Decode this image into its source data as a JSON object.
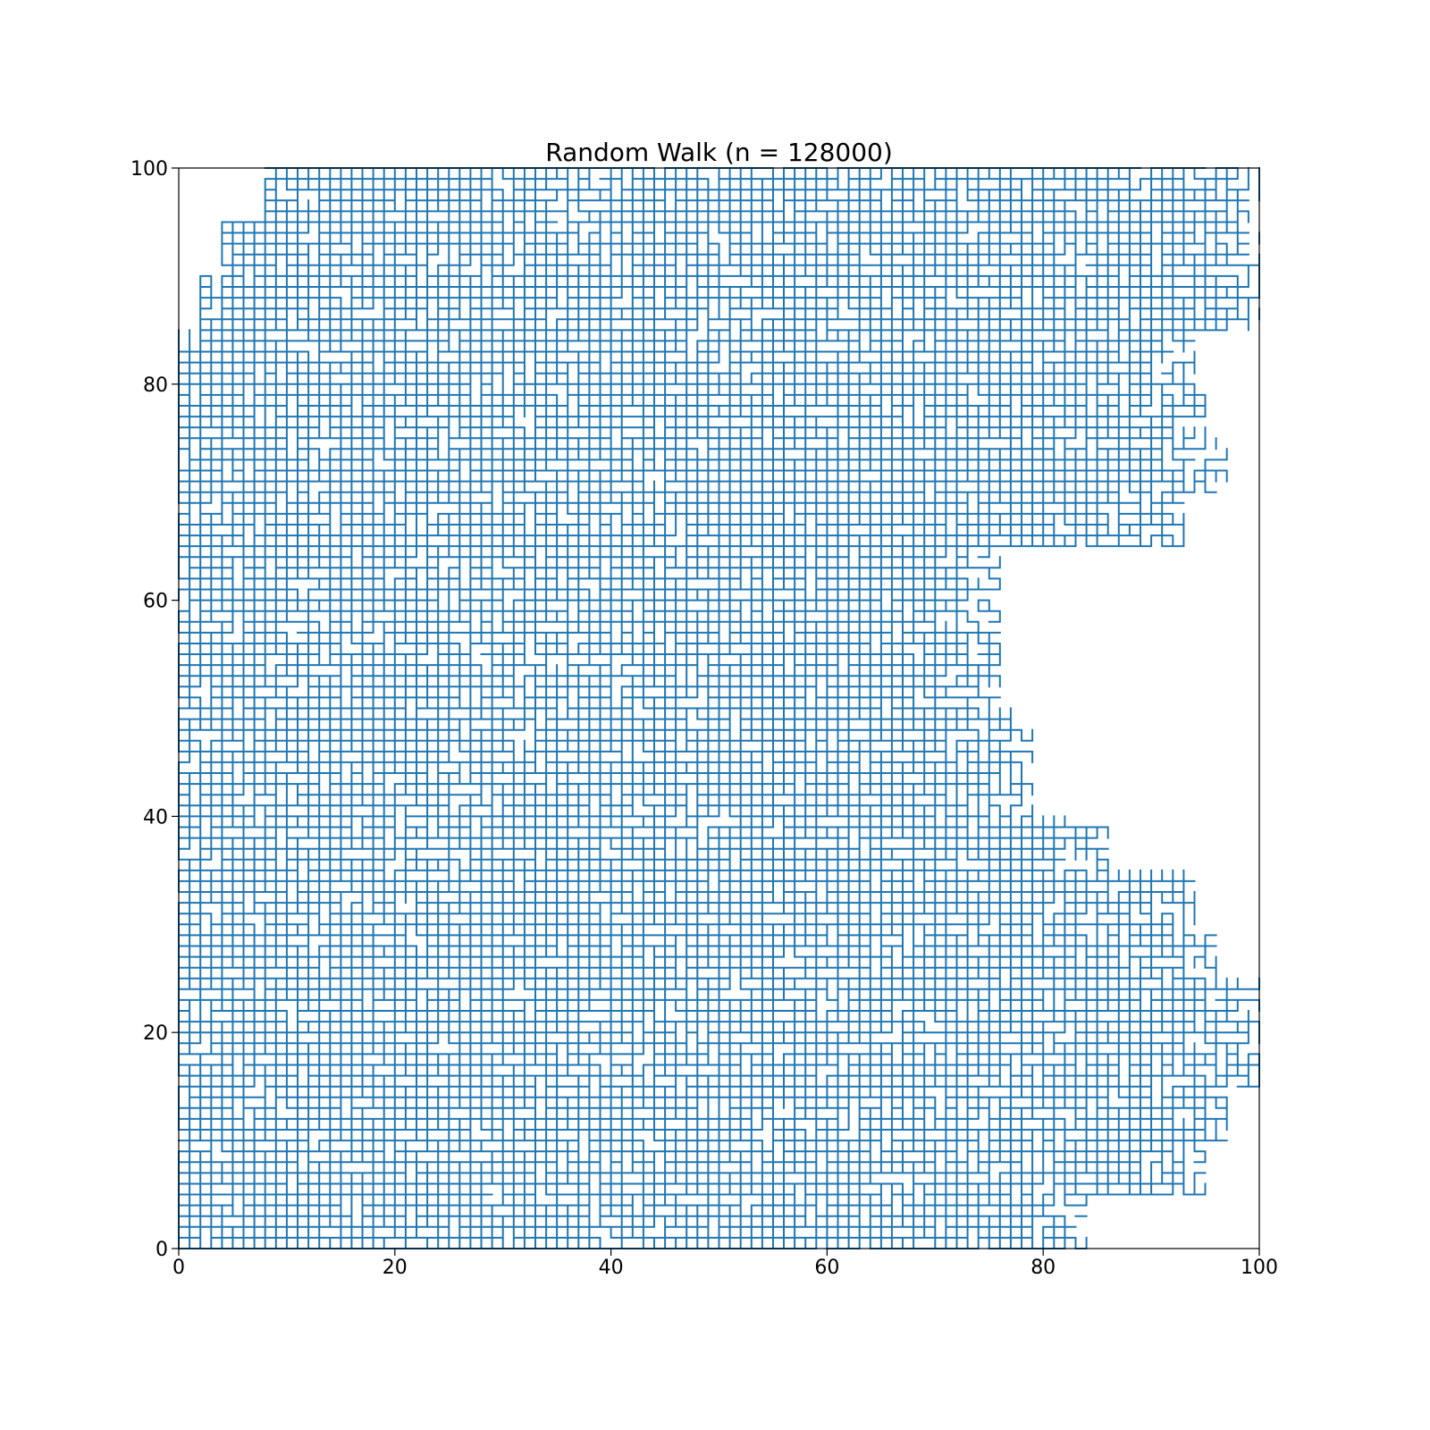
{
  "chart_data": {
    "type": "line",
    "title": "Random Walk (n = 128000)",
    "xlabel": "",
    "ylabel": "",
    "xlim": [
      0,
      100
    ],
    "ylim": [
      0,
      100
    ],
    "x_ticks": [
      0,
      20,
      40,
      60,
      80,
      100
    ],
    "y_ticks": [
      0,
      20,
      40,
      60,
      80,
      100
    ],
    "x_tick_labels": [
      "0",
      "20",
      "40",
      "60",
      "80",
      "100"
    ],
    "y_tick_labels": [
      "0",
      "20",
      "40",
      "60",
      "80",
      "100"
    ],
    "grid": false,
    "legend": "none",
    "line_color": "#1f77b4",
    "walk": {
      "steps": 128000,
      "lattice": "integer",
      "start": [
        0,
        0
      ],
      "bounded_to": [
        [
          0,
          100
        ],
        [
          0,
          100
        ]
      ]
    },
    "coverage_profile": [
      {
        "y_range": [
          0,
          5
        ],
        "x_max": 84
      },
      {
        "y_range": [
          5,
          10
        ],
        "x_max": 95
      },
      {
        "y_range": [
          10,
          15
        ],
        "x_max": 97
      },
      {
        "y_range": [
          15,
          20
        ],
        "x_max": 100
      },
      {
        "y_range": [
          20,
          25
        ],
        "x_max": 100
      },
      {
        "y_range": [
          25,
          30
        ],
        "x_max": 96
      },
      {
        "y_range": [
          30,
          35
        ],
        "x_max": 94
      },
      {
        "y_range": [
          35,
          40
        ],
        "x_max": 86
      },
      {
        "y_range": [
          40,
          45
        ],
        "x_max": 79
      },
      {
        "y_range": [
          45,
          50
        ],
        "x_max": 79
      },
      {
        "y_range": [
          50,
          55
        ],
        "x_max": 76
      },
      {
        "y_range": [
          55,
          60
        ],
        "x_max": 76
      },
      {
        "y_range": [
          60,
          65
        ],
        "x_max": 76
      },
      {
        "y_range": [
          65,
          70
        ],
        "x_max": 93
      },
      {
        "y_range": [
          70,
          75
        ],
        "x_max": 97
      },
      {
        "y_range": [
          75,
          80
        ],
        "x_max": 95
      },
      {
        "y_range": [
          80,
          85
        ],
        "x_max": 94
      },
      {
        "y_range": [
          85,
          90
        ],
        "x_max": 100
      },
      {
        "y_range": [
          90,
          95
        ],
        "x_max": 100
      },
      {
        "y_range": [
          95,
          100
        ],
        "x_max": 100
      }
    ],
    "left_edge_profile": [
      {
        "y_range": [
          85,
          90
        ],
        "x_min": 2
      },
      {
        "y_range": [
          90,
          95
        ],
        "x_min": 4
      },
      {
        "y_range": [
          95,
          100
        ],
        "x_min": 8
      }
    ]
  }
}
